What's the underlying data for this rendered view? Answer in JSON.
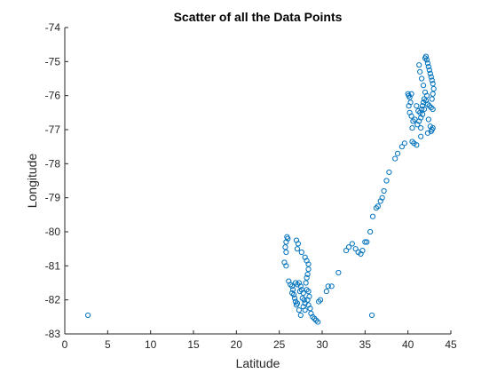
{
  "chart_data": {
    "type": "scatter",
    "title": "Scatter of all the Data Points",
    "xlabel": "Latitude",
    "ylabel": "Longitude",
    "xlim": [
      0,
      45
    ],
    "ylim": [
      -83,
      -74
    ],
    "xticks": [
      0,
      5,
      10,
      15,
      20,
      25,
      30,
      35,
      40,
      45
    ],
    "yticks": [
      -83,
      -82,
      -81,
      -80,
      -79,
      -78,
      -77,
      -76,
      -75,
      -74
    ],
    "grid": false,
    "marker": "circle-open",
    "color": "#0072BD",
    "series": [
      {
        "points": [
          [
            2.7,
            -82.45
          ],
          [
            35.8,
            -82.45
          ],
          [
            25.9,
            -80.15
          ],
          [
            26.0,
            -80.2
          ],
          [
            25.8,
            -80.3
          ],
          [
            25.7,
            -80.45
          ],
          [
            25.8,
            -80.6
          ],
          [
            25.6,
            -80.9
          ],
          [
            25.8,
            -81.0
          ],
          [
            27.0,
            -80.25
          ],
          [
            27.2,
            -80.35
          ],
          [
            27.1,
            -80.5
          ],
          [
            27.6,
            -80.6
          ],
          [
            28.0,
            -80.75
          ],
          [
            28.2,
            -80.85
          ],
          [
            28.4,
            -80.95
          ],
          [
            28.4,
            -81.1
          ],
          [
            28.3,
            -81.25
          ],
          [
            28.2,
            -81.35
          ],
          [
            26.1,
            -81.45
          ],
          [
            26.3,
            -81.55
          ],
          [
            26.5,
            -81.6
          ],
          [
            26.6,
            -81.7
          ],
          [
            26.5,
            -81.8
          ],
          [
            26.7,
            -81.85
          ],
          [
            26.8,
            -81.95
          ],
          [
            26.9,
            -82.05
          ],
          [
            27.0,
            -82.15
          ],
          [
            27.1,
            -82.1
          ],
          [
            26.9,
            -81.5
          ],
          [
            27.1,
            -81.55
          ],
          [
            27.3,
            -81.5
          ],
          [
            27.5,
            -81.6
          ],
          [
            27.4,
            -81.75
          ],
          [
            27.6,
            -81.7
          ],
          [
            27.8,
            -81.8
          ],
          [
            27.7,
            -81.95
          ],
          [
            27.9,
            -82.0
          ],
          [
            27.8,
            -82.2
          ],
          [
            28.0,
            -82.1
          ],
          [
            28.1,
            -81.5
          ],
          [
            28.2,
            -81.7
          ],
          [
            28.4,
            -81.75
          ],
          [
            28.5,
            -81.9
          ],
          [
            28.3,
            -82.0
          ],
          [
            28.4,
            -82.15
          ],
          [
            28.6,
            -82.25
          ],
          [
            28.7,
            -82.4
          ],
          [
            28.9,
            -82.5
          ],
          [
            29.1,
            -82.55
          ],
          [
            29.3,
            -82.6
          ],
          [
            29.5,
            -82.65
          ],
          [
            27.3,
            -82.3
          ],
          [
            27.5,
            -82.45
          ],
          [
            28.0,
            -82.3
          ],
          [
            29.6,
            -82.05
          ],
          [
            29.8,
            -82.0
          ],
          [
            30.5,
            -81.75
          ],
          [
            30.7,
            -81.6
          ],
          [
            31.1,
            -81.6
          ],
          [
            31.9,
            -81.2
          ],
          [
            32.8,
            -80.55
          ],
          [
            33.1,
            -80.45
          ],
          [
            33.5,
            -80.35
          ],
          [
            33.9,
            -80.5
          ],
          [
            34.2,
            -80.6
          ],
          [
            34.5,
            -80.65
          ],
          [
            34.7,
            -80.55
          ],
          [
            35.0,
            -80.3
          ],
          [
            35.2,
            -80.3
          ],
          [
            35.6,
            -80.0
          ],
          [
            35.9,
            -79.55
          ],
          [
            36.3,
            -79.3
          ],
          [
            36.5,
            -79.25
          ],
          [
            36.8,
            -79.1
          ],
          [
            37.0,
            -79.0
          ],
          [
            37.2,
            -78.8
          ],
          [
            37.5,
            -78.5
          ],
          [
            37.8,
            -78.25
          ],
          [
            38.5,
            -77.85
          ],
          [
            38.8,
            -77.7
          ],
          [
            39.3,
            -77.5
          ],
          [
            39.6,
            -77.4
          ],
          [
            40.5,
            -77.35
          ],
          [
            40.7,
            -77.4
          ],
          [
            41.0,
            -77.45
          ],
          [
            41.5,
            -77.2
          ],
          [
            40.0,
            -75.95
          ],
          [
            40.1,
            -76.0
          ],
          [
            40.2,
            -76.05
          ],
          [
            40.4,
            -75.95
          ],
          [
            40.3,
            -76.2
          ],
          [
            40.1,
            -76.3
          ],
          [
            40.2,
            -76.5
          ],
          [
            40.4,
            -76.6
          ],
          [
            40.6,
            -76.75
          ],
          [
            40.8,
            -76.7
          ],
          [
            40.5,
            -76.95
          ],
          [
            41.0,
            -76.3
          ],
          [
            41.2,
            -76.45
          ],
          [
            41.4,
            -76.5
          ],
          [
            41.6,
            -76.4
          ],
          [
            41.7,
            -76.3
          ],
          [
            41.8,
            -76.2
          ],
          [
            41.9,
            -76.4
          ],
          [
            41.7,
            -76.55
          ],
          [
            41.5,
            -76.65
          ],
          [
            41.3,
            -76.75
          ],
          [
            41.1,
            -76.85
          ],
          [
            41.5,
            -76.95
          ],
          [
            41.3,
            -75.1
          ],
          [
            41.4,
            -75.3
          ],
          [
            41.6,
            -75.5
          ],
          [
            41.8,
            -75.7
          ],
          [
            42.0,
            -75.9
          ],
          [
            42.2,
            -76.0
          ],
          [
            41.9,
            -76.1
          ],
          [
            42.1,
            -76.15
          ],
          [
            42.3,
            -76.25
          ],
          [
            42.5,
            -76.3
          ],
          [
            42.7,
            -76.35
          ],
          [
            42.9,
            -76.4
          ],
          [
            42.0,
            -74.9
          ],
          [
            42.1,
            -74.85
          ],
          [
            42.2,
            -74.95
          ],
          [
            42.3,
            -75.05
          ],
          [
            42.4,
            -75.15
          ],
          [
            42.5,
            -75.25
          ],
          [
            42.6,
            -75.35
          ],
          [
            42.7,
            -75.45
          ],
          [
            42.8,
            -75.55
          ],
          [
            42.9,
            -75.65
          ],
          [
            43.0,
            -75.8
          ],
          [
            42.9,
            -75.95
          ],
          [
            42.8,
            -76.1
          ],
          [
            42.4,
            -76.7
          ],
          [
            42.6,
            -76.9
          ],
          [
            42.8,
            -77.0
          ],
          [
            42.9,
            -76.95
          ],
          [
            42.7,
            -77.05
          ],
          [
            42.3,
            -77.1
          ]
        ]
      }
    ]
  }
}
